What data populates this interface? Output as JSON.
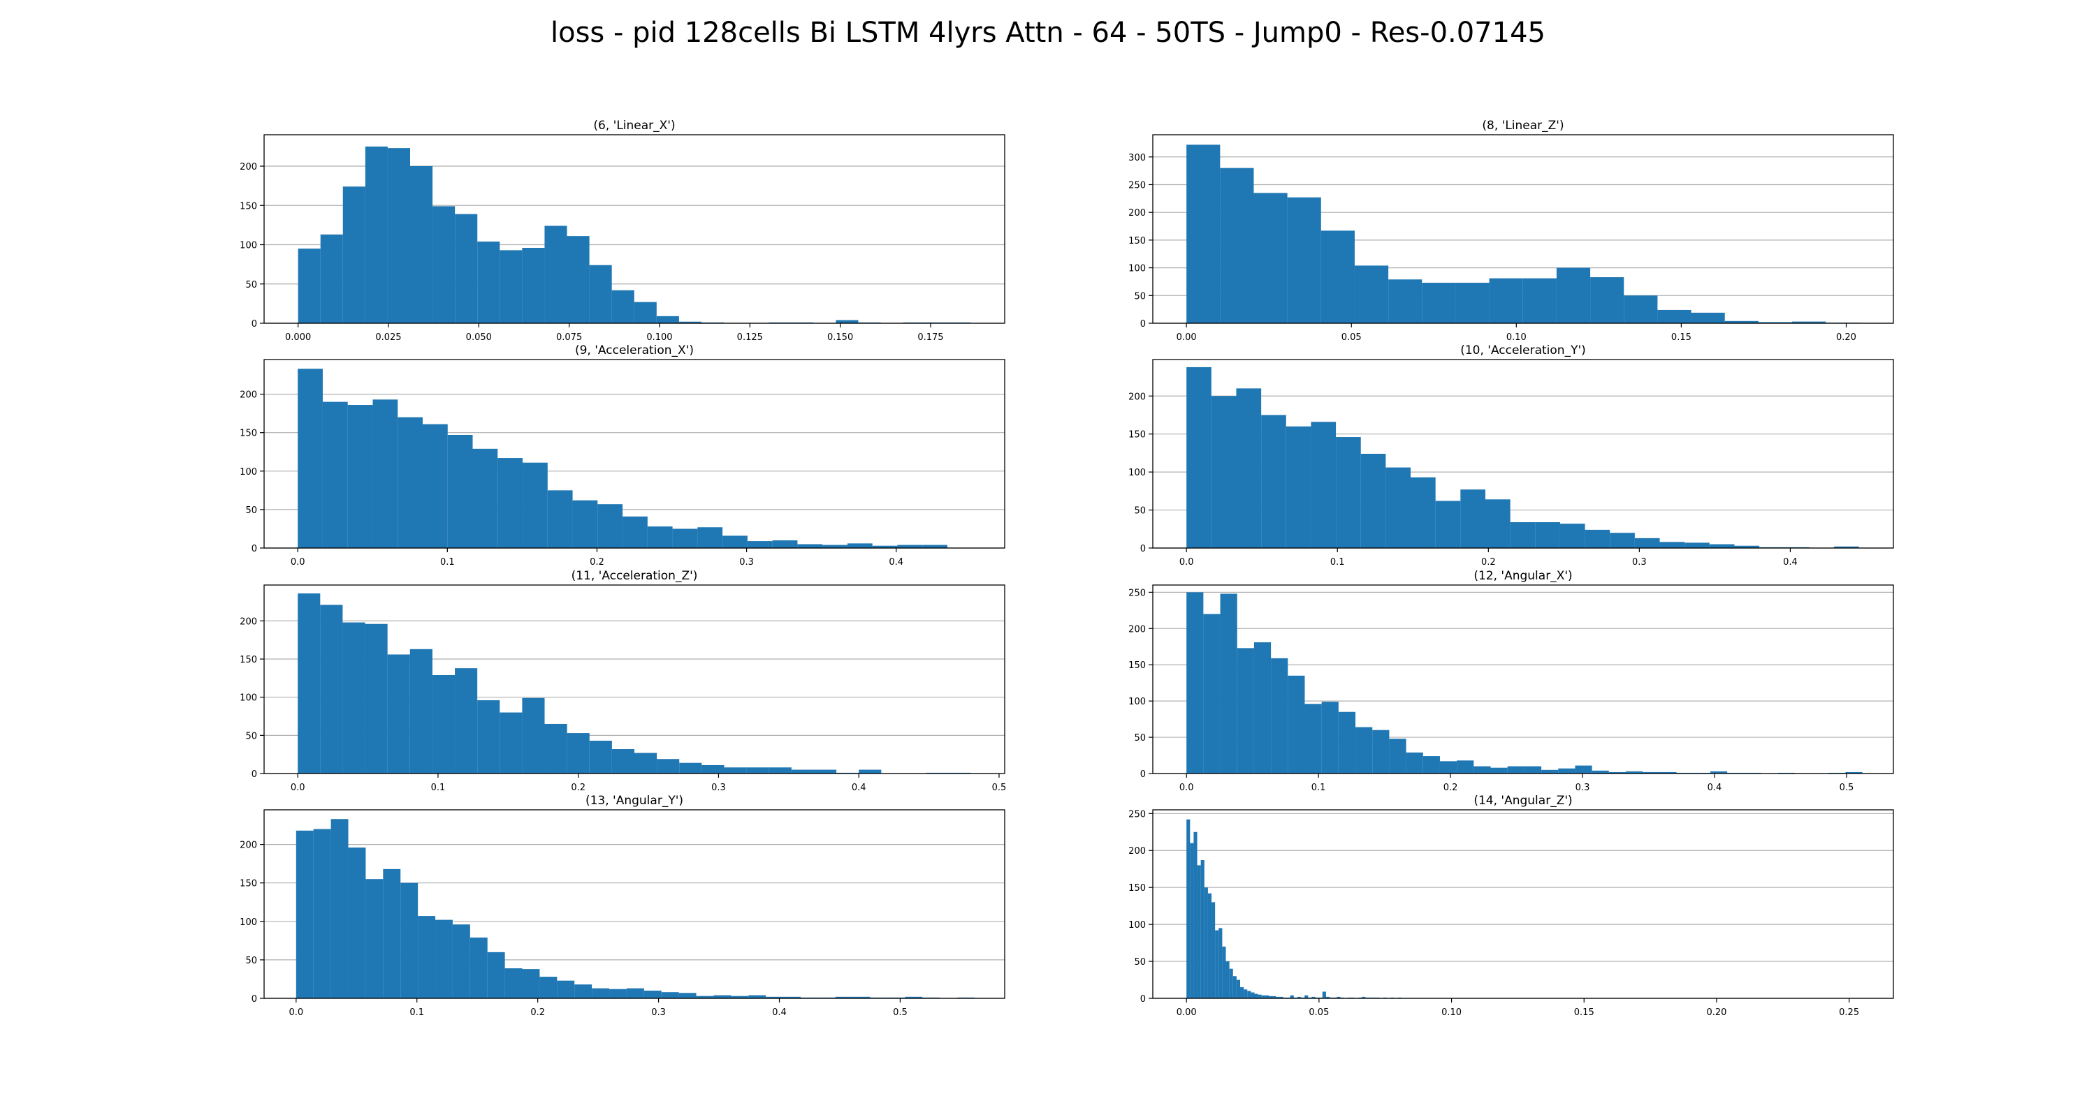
{
  "figure_title": "loss - pid 128cells Bi LSTM 4lyrs Attn - 64 - 50TS - Jump0 - Res-0.07145",
  "colors": {
    "bar": "#1f77b4",
    "grid": "#b0b0b0",
    "axis": "#000000"
  },
  "chart_data": [
    {
      "type": "bar",
      "title": "(6, 'Linear_X')",
      "grid": "horizontal",
      "xlim": [
        -0.0094,
        0.1955
      ],
      "ylim": [
        0,
        240
      ],
      "xticks": [
        0.0,
        0.025,
        0.05,
        0.075,
        0.1,
        0.125,
        0.15,
        0.175
      ],
      "xtick_labels": [
        "0.000",
        "0.025",
        "0.050",
        "0.075",
        "0.100",
        "0.125",
        "0.150",
        "0.175"
      ],
      "yticks": [
        0,
        50,
        100,
        150,
        200
      ],
      "bin_start": 0.0,
      "bin_width": 0.0062,
      "values": [
        95,
        113,
        174,
        225,
        223,
        200,
        149,
        139,
        104,
        93,
        96,
        124,
        111,
        74,
        42,
        27,
        9,
        2,
        1,
        0,
        0,
        1,
        1,
        0,
        4,
        1,
        0,
        1,
        1,
        1
      ]
    },
    {
      "type": "bar",
      "title": "(8, 'Linear_Z')",
      "grid": "horizontal",
      "xlim": [
        -0.0102,
        0.2143
      ],
      "ylim": [
        0,
        340
      ],
      "xticks": [
        0.0,
        0.05,
        0.1,
        0.15,
        0.2
      ],
      "xtick_labels": [
        "0.00",
        "0.05",
        "0.10",
        "0.15",
        "0.20"
      ],
      "yticks": [
        0,
        50,
        100,
        150,
        200,
        250,
        300
      ],
      "bin_start": 0.0,
      "bin_width": 0.0102,
      "values": [
        322,
        280,
        235,
        227,
        167,
        104,
        79,
        73,
        73,
        81,
        81,
        100,
        83,
        50,
        24,
        19,
        4,
        2,
        3,
        1
      ]
    },
    {
      "type": "bar",
      "title": "(9, 'Acceleration_X')",
      "grid": "horizontal",
      "xlim": [
        -0.0225,
        0.4725
      ],
      "ylim": [
        0,
        245
      ],
      "xticks": [
        0.0,
        0.1,
        0.2,
        0.3,
        0.4
      ],
      "xtick_labels": [
        "0.0",
        "0.1",
        "0.2",
        "0.3",
        "0.4"
      ],
      "yticks": [
        0,
        50,
        100,
        150,
        200
      ],
      "bin_start": 0.0,
      "bin_width": 0.0167,
      "values": [
        233,
        190,
        186,
        193,
        170,
        161,
        147,
        129,
        117,
        111,
        75,
        62,
        57,
        41,
        28,
        25,
        27,
        16,
        9,
        10,
        5,
        4,
        6,
        3,
        4,
        4,
        0
      ]
    },
    {
      "type": "bar",
      "title": "(10, 'Acceleration_Y')",
      "grid": "horizontal",
      "xlim": [
        -0.0223,
        0.4683
      ],
      "ylim": [
        0,
        248
      ],
      "xticks": [
        0.0,
        0.1,
        0.2,
        0.3,
        0.4
      ],
      "xtick_labels": [
        "0.0",
        "0.1",
        "0.2",
        "0.3",
        "0.4"
      ],
      "yticks": [
        0,
        50,
        100,
        150,
        200
      ],
      "bin_start": 0.0,
      "bin_width": 0.0165,
      "values": [
        238,
        200,
        210,
        175,
        160,
        166,
        146,
        124,
        106,
        93,
        62,
        77,
        64,
        34,
        34,
        32,
        24,
        20,
        13,
        8,
        7,
        5,
        3,
        1,
        1,
        0,
        2
      ]
    },
    {
      "type": "bar",
      "title": "(11, 'Acceleration_Z')",
      "grid": "horizontal",
      "xlim": [
        -0.024,
        0.504
      ],
      "ylim": [
        0,
        247
      ],
      "xticks": [
        0.0,
        0.1,
        0.2,
        0.3,
        0.4,
        0.5
      ],
      "xtick_labels": [
        "0.0",
        "0.1",
        "0.2",
        "0.3",
        "0.4",
        "0.5"
      ],
      "yticks": [
        0,
        50,
        100,
        150,
        200
      ],
      "bin_start": 0.0,
      "bin_width": 0.016,
      "values": [
        236,
        221,
        198,
        196,
        156,
        163,
        129,
        138,
        96,
        80,
        99,
        65,
        53,
        43,
        32,
        27,
        19,
        14,
        11,
        8,
        8,
        8,
        5,
        5,
        1,
        5,
        0,
        0,
        1,
        1
      ]
    },
    {
      "type": "bar",
      "title": "(12, 'Angular_X')",
      "grid": "horizontal",
      "xlim": [
        -0.0255,
        0.5355
      ],
      "ylim": [
        0,
        260
      ],
      "xticks": [
        0.0,
        0.1,
        0.2,
        0.3,
        0.4,
        0.5
      ],
      "xtick_labels": [
        "0.0",
        "0.1",
        "0.2",
        "0.3",
        "0.4",
        "0.5"
      ],
      "yticks": [
        0,
        50,
        100,
        150,
        200,
        250
      ],
      "bin_start": 0.0,
      "bin_width": 0.0128,
      "values": [
        250,
        220,
        248,
        173,
        181,
        159,
        135,
        96,
        99,
        85,
        64,
        60,
        48,
        29,
        24,
        17,
        18,
        10,
        8,
        10,
        10,
        5,
        7,
        11,
        4,
        2,
        3,
        2,
        2,
        1,
        1,
        3,
        1,
        1,
        0,
        1,
        0,
        0,
        1,
        2
      ]
    },
    {
      "type": "bar",
      "title": "(13, 'Angular_Y')",
      "grid": "horizontal",
      "xlim": [
        -0.0265,
        0.5865
      ],
      "ylim": [
        0,
        245
      ],
      "xticks": [
        0.0,
        0.1,
        0.2,
        0.3,
        0.4,
        0.5
      ],
      "xtick_labels": [
        "0.0",
        "0.1",
        "0.2",
        "0.3",
        "0.4",
        "0.5"
      ],
      "yticks": [
        0,
        50,
        100,
        150,
        200
      ],
      "bin_start": 0.0,
      "bin_width": 0.0144,
      "values": [
        218,
        220,
        233,
        196,
        155,
        168,
        150,
        107,
        102,
        96,
        79,
        60,
        39,
        38,
        28,
        23,
        18,
        13,
        12,
        13,
        10,
        8,
        7,
        3,
        4,
        3,
        4,
        2,
        2,
        1,
        1,
        2,
        2,
        1,
        1,
        2,
        1,
        0,
        1
      ]
    },
    {
      "type": "bar",
      "title": "(14, 'Angular_Z')",
      "grid": "horizontal",
      "xlim": [
        -0.0127,
        0.2667
      ],
      "ylim": [
        0,
        255
      ],
      "xticks": [
        0.0,
        0.05,
        0.1,
        0.15,
        0.2,
        0.25
      ],
      "xtick_labels": [
        "0.00",
        "0.05",
        "0.10",
        "0.15",
        "0.20",
        "0.25"
      ],
      "yticks": [
        0,
        50,
        100,
        150,
        200,
        250
      ],
      "bin_start": 0.0,
      "bin_width": 0.00135,
      "values": [
        242,
        210,
        225,
        180,
        187,
        150,
        142,
        130,
        92,
        95,
        70,
        50,
        40,
        30,
        25,
        15,
        12,
        10,
        8,
        6,
        5,
        4,
        4,
        3,
        3,
        2,
        2,
        1,
        1,
        4,
        1,
        2,
        1,
        4,
        1,
        2,
        1,
        1,
        9,
        2,
        1,
        1,
        2,
        1,
        0,
        1,
        1,
        0,
        1,
        2,
        1,
        1,
        1,
        1,
        0,
        1,
        0,
        1,
        0,
        1
      ]
    }
  ]
}
